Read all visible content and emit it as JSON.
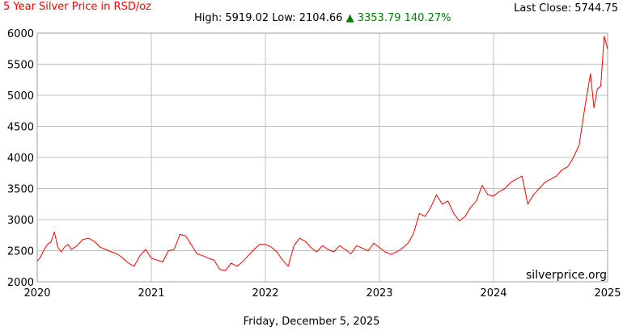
{
  "header": {
    "title": "5 Year Silver Price in RSD/oz",
    "last_close_label": "Last Close: 5744.75",
    "high_low": "High: 5919.02 Low: 2104.66",
    "arrow": "▲",
    "change": "3353.79 140.27%"
  },
  "footer": {
    "date": "Friday, December 5, 2025"
  },
  "watermark": "silverprice.org",
  "colors": {
    "line": "#ff0000",
    "grid": "#c0c0c0",
    "title": "#ff0000",
    "up": "#008000"
  },
  "chart_data": {
    "type": "line",
    "title": "5 Year Silver Price in RSD/oz",
    "xlabel": "",
    "ylabel": "",
    "x_ticks": [
      "2020",
      "2021",
      "2022",
      "2023",
      "2024",
      "2025"
    ],
    "y_ticks": [
      2000,
      2500,
      3000,
      3500,
      4000,
      4500,
      5000,
      5500,
      6000
    ],
    "xlim": [
      2020.0,
      2025.0
    ],
    "ylim": [
      2000,
      6000
    ],
    "grid": true,
    "series": [
      {
        "x": [
          2020.0,
          2020.03,
          2020.06,
          2020.09,
          2020.12,
          2020.15,
          2020.18,
          2020.21,
          2020.24,
          2020.27,
          2020.3,
          2020.35,
          2020.4,
          2020.45,
          2020.5,
          2020.55,
          2020.6,
          2020.65,
          2020.7,
          2020.75,
          2020.8,
          2020.85,
          2020.9,
          2020.95,
          2021.0,
          2021.05,
          2021.1,
          2021.15,
          2021.2,
          2021.25,
          2021.3,
          2021.35,
          2021.4,
          2021.45,
          2021.5,
          2021.55,
          2021.6,
          2021.65,
          2021.7,
          2021.75,
          2021.8,
          2021.85,
          2021.9,
          2021.95,
          2022.0,
          2022.05,
          2022.1,
          2022.15,
          2022.2,
          2022.25,
          2022.3,
          2022.35,
          2022.4,
          2022.45,
          2022.5,
          2022.55,
          2022.6,
          2022.65,
          2022.7,
          2022.75,
          2022.8,
          2022.85,
          2022.9,
          2022.95,
          2023.0,
          2023.05,
          2023.1,
          2023.15,
          2023.2,
          2023.25,
          2023.3,
          2023.35,
          2023.4,
          2023.45,
          2023.5,
          2023.55,
          2023.6,
          2023.65,
          2023.7,
          2023.75,
          2023.8,
          2023.85,
          2023.9,
          2023.95,
          2024.0,
          2024.05,
          2024.1,
          2024.15,
          2024.2,
          2024.25,
          2024.3,
          2024.35,
          2024.4,
          2024.45,
          2024.5,
          2024.55,
          2024.6,
          2024.65,
          2024.7,
          2024.75,
          2024.8,
          2024.85,
          2024.88,
          2024.91,
          2024.94,
          2024.97,
          2025.0
        ],
        "y": [
          2330,
          2400,
          2520,
          2600,
          2640,
          2800,
          2560,
          2480,
          2560,
          2600,
          2520,
          2580,
          2680,
          2700,
          2650,
          2560,
          2520,
          2480,
          2450,
          2380,
          2300,
          2250,
          2420,
          2520,
          2380,
          2350,
          2320,
          2500,
          2520,
          2760,
          2740,
          2600,
          2450,
          2420,
          2380,
          2350,
          2200,
          2180,
          2300,
          2250,
          2320,
          2420,
          2520,
          2600,
          2600,
          2560,
          2480,
          2350,
          2250,
          2580,
          2700,
          2650,
          2550,
          2480,
          2580,
          2520,
          2480,
          2580,
          2520,
          2450,
          2580,
          2540,
          2500,
          2620,
          2550,
          2480,
          2440,
          2480,
          2540,
          2620,
          2780,
          3100,
          3050,
          3200,
          3400,
          3250,
          3300,
          3100,
          2980,
          3050,
          3200,
          3300,
          3550,
          3400,
          3380,
          3450,
          3500,
          3600,
          3650,
          3700,
          3250,
          3400,
          3500,
          3600,
          3650,
          3700,
          3800,
          3850,
          4000,
          4200,
          4800,
          5350,
          4800,
          5100,
          5150,
          5950,
          5744.75
        ]
      }
    ]
  }
}
